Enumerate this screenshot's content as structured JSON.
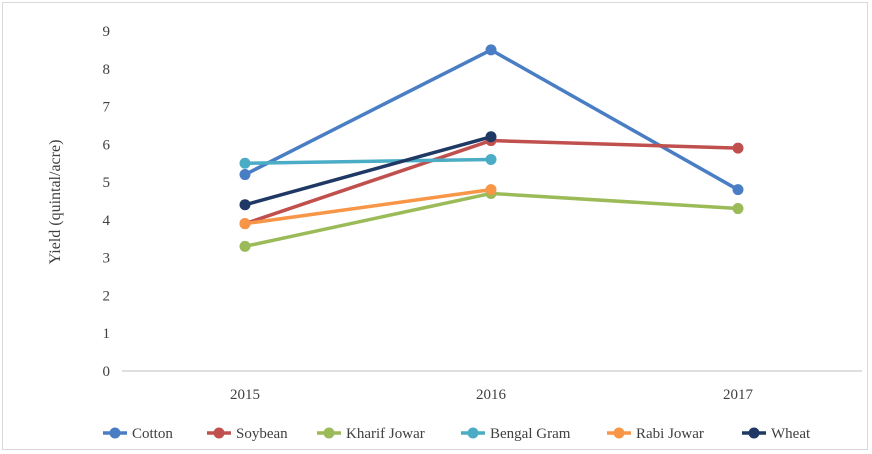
{
  "chart_data": {
    "type": "line",
    "title": "",
    "xlabel": "",
    "ylabel": "Yield (quintal/acre)",
    "categories": [
      "2015",
      "2016",
      "2017"
    ],
    "ylim": [
      0,
      9
    ],
    "yticks": [
      "0",
      "1",
      "2",
      "3",
      "4",
      "5",
      "6",
      "7",
      "8",
      "9"
    ],
    "grid": false,
    "legend_position": "bottom",
    "series": [
      {
        "name": "Cotton",
        "color": "#4a7ec4",
        "values": [
          5.2,
          8.5,
          4.8
        ]
      },
      {
        "name": "Soybean",
        "color": "#c0504d",
        "values": [
          3.9,
          6.1,
          5.9
        ]
      },
      {
        "name": "Kharif Jowar",
        "color": "#9bbb59",
        "values": [
          3.3,
          4.7,
          4.3
        ]
      },
      {
        "name": "Bengal Gram",
        "color": "#4bacc6",
        "values": [
          5.5,
          5.6,
          null
        ]
      },
      {
        "name": "Rabi Jowar",
        "color": "#f79646",
        "values": [
          3.9,
          4.8,
          null
        ]
      },
      {
        "name": "Wheat",
        "color": "#1f3864",
        "values": [
          4.4,
          6.2,
          null
        ]
      }
    ]
  }
}
